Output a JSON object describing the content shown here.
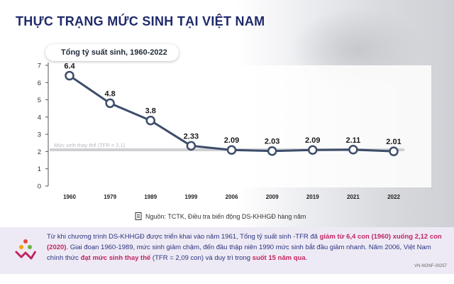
{
  "page": {
    "title": "THỰC TRẠNG MỨC SINH TẠI VIỆT NAM",
    "source": "Nguồn: TCTK, Điều tra biến động DS-KHHGĐ hàng năm",
    "code": "VN-NONF-00257",
    "body_text": {
      "p1": "Từ khi chương trình DS-KHHGĐ được triển khai vào năm 1961, Tổng tỷ suất sinh -TFR đã ",
      "h1": "giảm từ 6,4 con (1960) xuống 2,12 con (2020)",
      "p2": ". Giai đoạn 1960-1989, mức sinh giảm chậm, đến đầu thập niên 1990 mức sinh bắt đầu giảm nhanh. Năm 2006, Việt Nam chính thức ",
      "h2": "đạt mức sinh thay thế",
      "p3": " (TFR = 2,09 con) và duy trì trong ",
      "h3": "suốt 15 năm qua",
      "p4": "."
    },
    "colors": {
      "title": "#1f2a6b",
      "line": "#3d4d6a",
      "highlight": "#c0265f",
      "band": "#eeeaf5"
    }
  },
  "chart_data": {
    "type": "line",
    "title": "Tổng tỷ suất sinh, 1960-2022",
    "categories": [
      "1960",
      "1979",
      "1989",
      "1999",
      "2006",
      "2009",
      "2019",
      "2021",
      "2022"
    ],
    "values": [
      6.4,
      4.8,
      3.8,
      2.33,
      2.09,
      2.03,
      2.09,
      2.11,
      2.01
    ],
    "labels": [
      "6.4",
      "4.8",
      "3.8",
      "2.33",
      "2.09",
      "2.03",
      "2.09",
      "2.11",
      "2.01"
    ],
    "y_ticks": [
      "0",
      "1",
      "2",
      "3",
      "4",
      "5",
      "6",
      "7"
    ],
    "ylim": [
      0,
      7
    ],
    "reference": {
      "value": 2.1,
      "label": "Mức sinh thay thế (TFR = 2,1)"
    },
    "grid": false,
    "xlabel": "",
    "ylabel": ""
  }
}
